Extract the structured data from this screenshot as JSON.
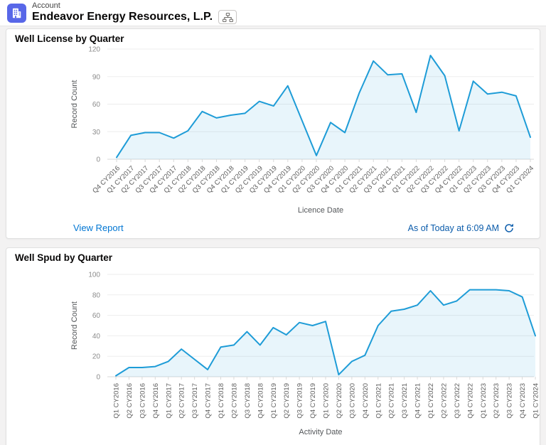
{
  "header": {
    "object_label": "Account",
    "record_name": "Endeavor Energy Resources, L.P.",
    "account_icon": "account-building-icon",
    "hierarchy_icon": "hierarchy-icon"
  },
  "footer": {
    "view_report_label": "View Report",
    "as_of_text": "As of Today at 6:09 AM",
    "refresh_icon": "refresh-icon"
  },
  "colors": {
    "line_blue": "#1e9cd7",
    "area_fill": "rgba(30,156,215,0.10)",
    "grid_line": "#ededed",
    "axis_line": "#d9d9d9",
    "tick_label": "#8c8c8c",
    "x_label": "#5c5c5c",
    "axis_title": "#54575a",
    "link_blue": "#0176d3",
    "as_of_blue": "#0b5cab",
    "account_icon_bg": "#5867e8"
  },
  "chart_data": [
    {
      "type": "area",
      "title": "Well License by Quarter",
      "xlabel": "Licence Date",
      "ylabel": "Record Count",
      "ylim": [
        0,
        120
      ],
      "yticks": [
        0,
        30,
        60,
        90,
        120
      ],
      "grid": "horizontal",
      "legend": "none",
      "x_label_rotation": -45,
      "categories": [
        "Q4 CY2016",
        "Q1 CY2017",
        "Q2 CY2017",
        "Q3 CY2017",
        "Q4 CY2017",
        "Q1 CY2018",
        "Q2 CY2018",
        "Q3 CY2018",
        "Q4 CY2018",
        "Q1 CY2019",
        "Q2 CY2019",
        "Q3 CY2019",
        "Q4 CY2019",
        "Q1 CY2020",
        "Q2 CY2020",
        "Q3 CY2020",
        "Q4 CY2020",
        "Q1 CY2021",
        "Q2 CY2021",
        "Q3 CY2021",
        "Q4 CY2021",
        "Q1 CY2022",
        "Q2 CY2022",
        "Q3 CY2022",
        "Q4 CY2022",
        "Q1 CY2023",
        "Q2 CY2023",
        "Q3 CY2023",
        "Q4 CY2023",
        "Q1 CY2024"
      ],
      "values": [
        2,
        26,
        29,
        29,
        23,
        31,
        52,
        45,
        48,
        50,
        63,
        58,
        80,
        42,
        4,
        40,
        29,
        72,
        107,
        92,
        93,
        51,
        113,
        91,
        31,
        85,
        71,
        73,
        69,
        24
      ]
    },
    {
      "type": "area",
      "title": "Well Spud by Quarter",
      "xlabel": "Activity Date",
      "ylabel": "Record Count",
      "ylim": [
        0,
        100
      ],
      "yticks": [
        0,
        20,
        40,
        60,
        80,
        100
      ],
      "grid": "horizontal",
      "legend": "none",
      "x_label_rotation": -90,
      "categories": [
        "Q1 CY2016",
        "Q2 CY2016",
        "Q3 CY2016",
        "Q4 CY2016",
        "Q1 CY2017",
        "Q2 CY2017",
        "Q3 CY2017",
        "Q4 CY2017",
        "Q1 CY2018",
        "Q2 CY2018",
        "Q3 CY2018",
        "Q4 CY2018",
        "Q1 CY2019",
        "Q2 CY2019",
        "Q3 CY2019",
        "Q4 CY2019",
        "Q1 CY2020",
        "Q2 CY2020",
        "Q3 CY2020",
        "Q4 CY2020",
        "Q1 CY2021",
        "Q2 CY2021",
        "Q3 CY2021",
        "Q4 CY2021",
        "Q1 CY2022",
        "Q2 CY2022",
        "Q3 CY2022",
        "Q4 CY2022",
        "Q1 CY2023",
        "Q2 CY2023",
        "Q3 CY2023",
        "Q4 CY2023",
        "Q1 CY2024"
      ],
      "values": [
        1,
        9,
        9,
        10,
        15,
        27,
        17,
        7,
        29,
        31,
        44,
        31,
        48,
        41,
        53,
        50,
        54,
        2,
        15,
        21,
        50,
        64,
        66,
        70,
        84,
        70,
        74,
        85,
        85,
        85,
        84,
        78,
        40
      ]
    }
  ]
}
